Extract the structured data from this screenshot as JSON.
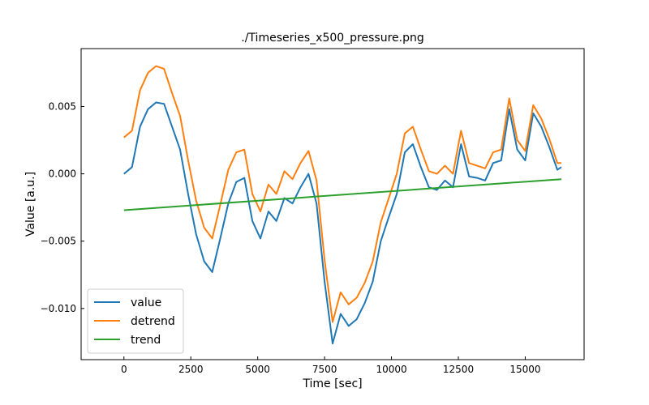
{
  "chart_data": {
    "type": "line",
    "title": "./Timeseries_x500_pressure.png",
    "xlabel": "Time [sec]",
    "ylabel": "Value [a.u.]",
    "xlim": [
      -1600,
      17200
    ],
    "ylim": [
      -0.0138,
      0.0093
    ],
    "xticks": [
      0,
      2500,
      5000,
      7500,
      10000,
      12500,
      15000
    ],
    "xtick_labels": [
      "0",
      "2500",
      "5000",
      "7500",
      "10000",
      "12500",
      "15000"
    ],
    "yticks": [
      -0.01,
      -0.005,
      0.0,
      0.005
    ],
    "ytick_labels": [
      "−0.010",
      "−0.005",
      "0.000",
      "0.005"
    ],
    "legend_position": "lower-left",
    "grid": false,
    "series": [
      {
        "name": "value",
        "color": "#1f77b4",
        "x": [
          0,
          300,
          600,
          900,
          1200,
          1500,
          1800,
          2100,
          2400,
          2700,
          3000,
          3300,
          3600,
          3900,
          4200,
          4500,
          4800,
          5100,
          5400,
          5700,
          6000,
          6300,
          6600,
          6900,
          7200,
          7500,
          7800,
          8100,
          8400,
          8700,
          9000,
          9300,
          9600,
          9900,
          10200,
          10500,
          10800,
          11100,
          11400,
          11700,
          12000,
          12300,
          12600,
          12900,
          13200,
          13500,
          13800,
          14100,
          14400,
          14700,
          15000,
          15300,
          15600,
          15900,
          16200,
          16350
        ],
        "y": [
          0.0,
          0.0005,
          0.0035,
          0.0048,
          0.0053,
          0.0052,
          0.0035,
          0.0018,
          -0.0015,
          -0.0045,
          -0.0065,
          -0.0073,
          -0.0048,
          -0.0022,
          -0.0006,
          -0.0003,
          -0.0035,
          -0.0048,
          -0.0028,
          -0.0035,
          -0.0018,
          -0.0022,
          -0.001,
          0.0,
          -0.0022,
          -0.008,
          -0.0126,
          -0.0104,
          -0.0113,
          -0.0108,
          -0.0096,
          -0.008,
          -0.005,
          -0.0032,
          -0.0015,
          0.0016,
          0.0022,
          0.0005,
          -0.001,
          -0.0012,
          -0.0005,
          -0.001,
          0.0022,
          -0.0002,
          -0.0003,
          -0.0005,
          0.0008,
          0.001,
          0.0048,
          0.0018,
          0.001,
          0.0045,
          0.0035,
          0.002,
          0.0003,
          0.0005
        ]
      },
      {
        "name": "detrend",
        "color": "#ff7f0e",
        "x": [
          0,
          300,
          600,
          900,
          1200,
          1500,
          1800,
          2100,
          2400,
          2700,
          3000,
          3300,
          3600,
          3900,
          4200,
          4500,
          4800,
          5100,
          5400,
          5700,
          6000,
          6300,
          6600,
          6900,
          7200,
          7500,
          7800,
          8100,
          8400,
          8700,
          9000,
          9300,
          9600,
          9900,
          10200,
          10500,
          10800,
          11100,
          11400,
          11700,
          12000,
          12300,
          12600,
          12900,
          13200,
          13500,
          13800,
          14100,
          14400,
          14700,
          15000,
          15300,
          15600,
          15900,
          16200,
          16350
        ],
        "y": [
          0.0027,
          0.0032,
          0.0062,
          0.0075,
          0.008,
          0.0078,
          0.006,
          0.0043,
          0.001,
          -0.002,
          -0.004,
          -0.0048,
          -0.0023,
          0.0003,
          0.0016,
          0.0018,
          -0.0015,
          -0.0028,
          -0.0008,
          -0.0015,
          0.0002,
          -0.0004,
          0.0008,
          0.0017,
          -0.0005,
          -0.0064,
          -0.011,
          -0.0088,
          -0.0097,
          -0.0092,
          -0.0081,
          -0.0065,
          -0.0036,
          -0.0018,
          0.0,
          0.003,
          0.0035,
          0.0018,
          0.0002,
          0.0,
          0.0006,
          0.0,
          0.0032,
          0.0008,
          0.0006,
          0.0004,
          0.0016,
          0.0018,
          0.0056,
          0.0025,
          0.0017,
          0.0051,
          0.0041,
          0.0026,
          0.0008,
          0.0008
        ]
      },
      {
        "name": "trend",
        "color": "#2ca02c",
        "x": [
          0,
          16350
        ],
        "y": [
          -0.0027,
          -0.0004
        ]
      }
    ]
  }
}
